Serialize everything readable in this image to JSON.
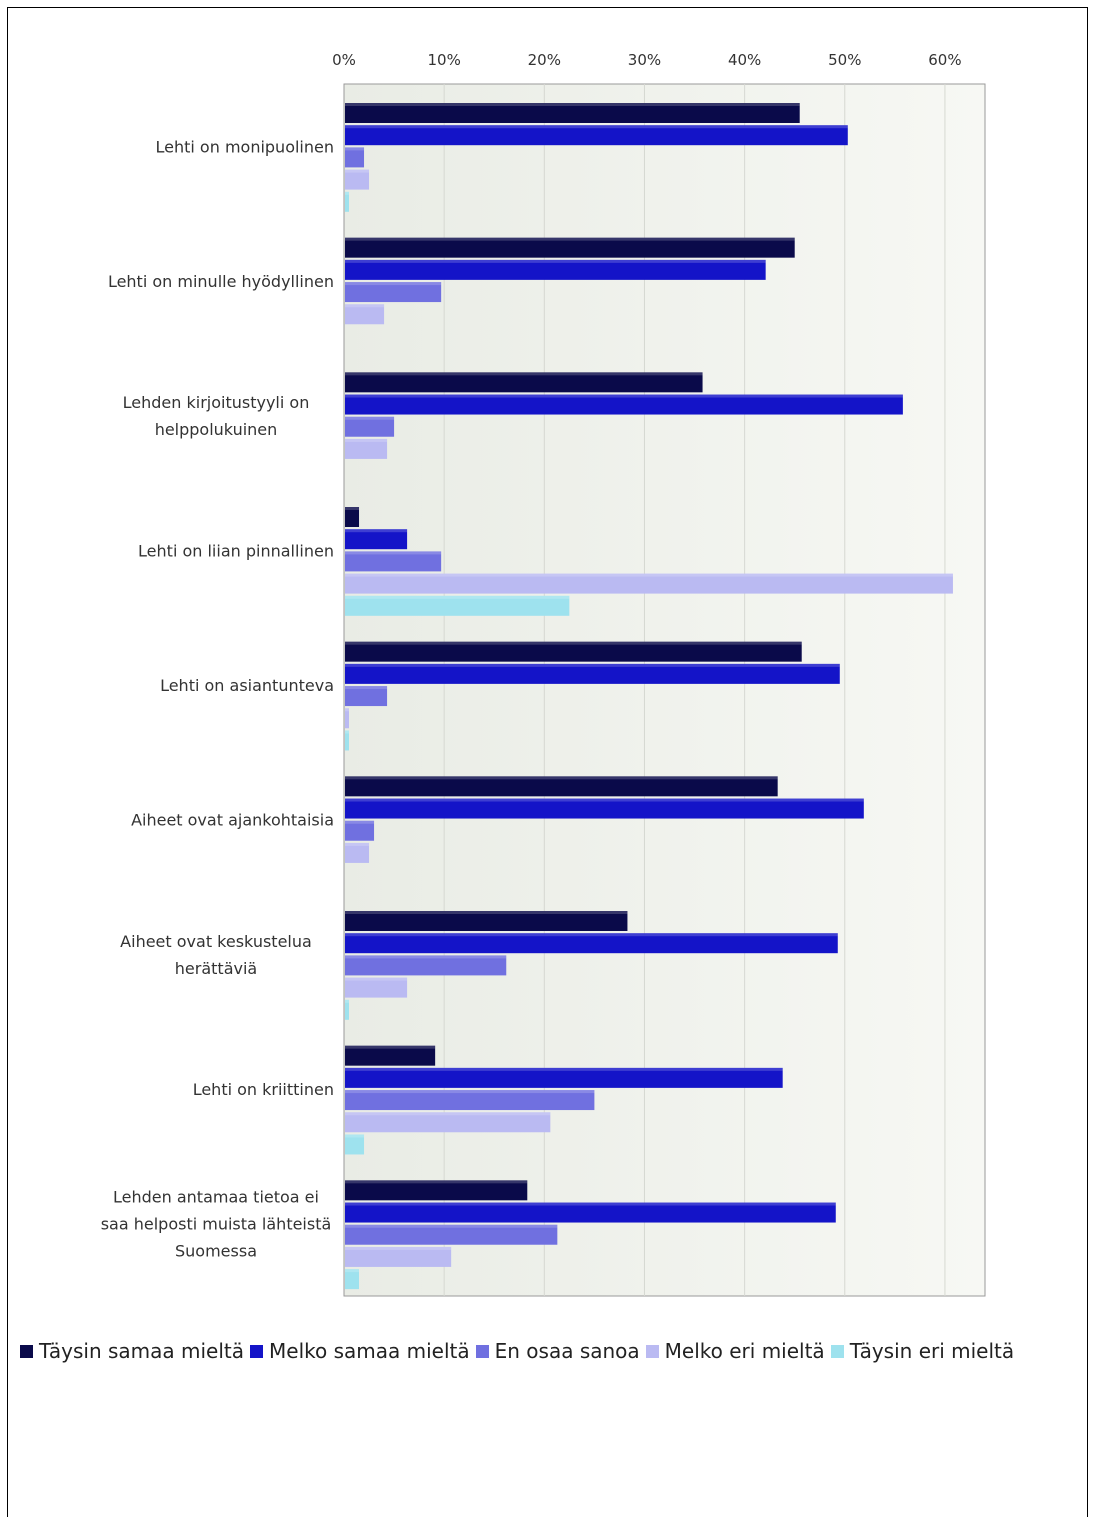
{
  "chart_data": {
    "type": "bar",
    "orientation": "horizontal",
    "title": "",
    "xlabel": "",
    "ylabel": "",
    "xlim": [
      0,
      64
    ],
    "x_ticks": [
      "0%",
      "10%",
      "20%",
      "30%",
      "40%",
      "50%",
      "60%"
    ],
    "x_tick_values": [
      0,
      10,
      20,
      30,
      40,
      50,
      60
    ],
    "grid": "vertical",
    "legend_position": "bottom",
    "categories": [
      [
        "Lehti on monipuolinen"
      ],
      [
        "Lehti on minulle hyödyllinen"
      ],
      [
        "Lehden kirjoitustyyli on",
        "helppolukuinen"
      ],
      [
        "Lehti on liian pinnallinen"
      ],
      [
        "Lehti on asiantunteva"
      ],
      [
        "Aiheet ovat ajankohtaisia"
      ],
      [
        "Aiheet ovat keskustelua",
        "herättäviä"
      ],
      [
        "Lehti on kriittinen"
      ],
      [
        "Lehden antamaa tietoa ei",
        "saa helposti muista lähteistä",
        "Suomessa"
      ]
    ],
    "series": [
      {
        "name": "Täysin samaa mieltä",
        "color": "#0a0a4a",
        "values": [
          45.5,
          45.0,
          35.8,
          1.5,
          45.7,
          43.3,
          28.3,
          9.1,
          18.3
        ]
      },
      {
        "name": "Melko samaa mieltä",
        "color": "#1414c8",
        "values": [
          50.3,
          42.1,
          55.8,
          6.3,
          49.5,
          51.9,
          49.3,
          43.8,
          49.1
        ]
      },
      {
        "name": "En osaa sanoa",
        "color": "#7070e0",
        "values": [
          2.0,
          9.7,
          5.0,
          9.7,
          4.3,
          3.0,
          16.2,
          25.0,
          21.3
        ]
      },
      {
        "name": "Melko eri mieltä",
        "color": "#babaf2",
        "values": [
          2.5,
          4.0,
          4.3,
          60.8,
          0.5,
          2.5,
          6.3,
          20.6,
          10.7
        ]
      },
      {
        "name": "Täysin eri mieltä",
        "color": "#9ee2ee",
        "values": [
          0.5,
          0,
          0,
          22.5,
          0.5,
          0,
          0.5,
          2.0,
          1.5
        ]
      }
    ]
  }
}
